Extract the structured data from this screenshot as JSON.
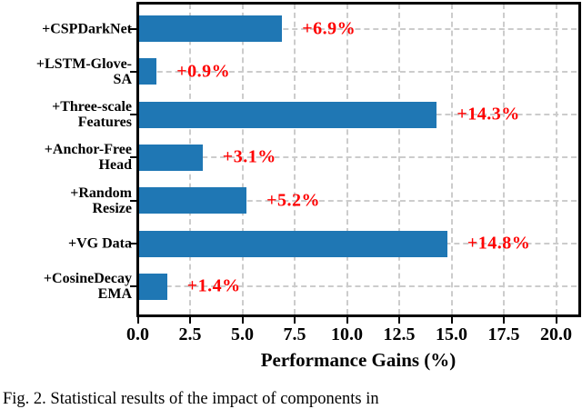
{
  "figure": {
    "caption": "Fig. 2.  Statistical results of the impact of components in"
  },
  "chart_data": {
    "type": "bar",
    "orientation": "horizontal",
    "title": "",
    "xlabel": "Performance Gains (%)",
    "ylabel": "",
    "xlim": [
      0,
      21.2
    ],
    "x_ticks": [
      0,
      2.5,
      5,
      7.5,
      10,
      12.5,
      15,
      17.5,
      20
    ],
    "x_tick_labels": [
      "0.0",
      "2.5",
      "5.0",
      "7.5",
      "10.0",
      "12.5",
      "15.0",
      "17.5",
      "20.0"
    ],
    "grid": {
      "vertical": true,
      "horizontal": true,
      "style": "dashed",
      "color": "#cccccc"
    },
    "legend": "none",
    "bar_color": "#1f77b4",
    "value_label_color": "#fe0000",
    "categories": [
      "+CSPDarkNet",
      "+LSTM-Glove-SA",
      "+Three-scale Features",
      "+Anchor-Free Head",
      "+Random Resize",
      "+VG Data",
      "+CosineDecay EMA"
    ],
    "category_lines": [
      [
        "+CSPDarkNet"
      ],
      [
        "+LSTM-Glove-",
        "SA"
      ],
      [
        "+Three-scale",
        "Features"
      ],
      [
        "+Anchor-Free",
        "Head"
      ],
      [
        "+Random",
        "Resize"
      ],
      [
        "+VG Data"
      ],
      [
        "+CosineDecay",
        "EMA"
      ]
    ],
    "values": [
      6.9,
      0.9,
      14.3,
      3.1,
      5.2,
      14.8,
      1.4
    ],
    "value_labels": [
      "+6.9%",
      "+0.9%",
      "+14.3%",
      "+3.1%",
      "+5.2%",
      "+14.8%",
      "+1.4%"
    ]
  }
}
